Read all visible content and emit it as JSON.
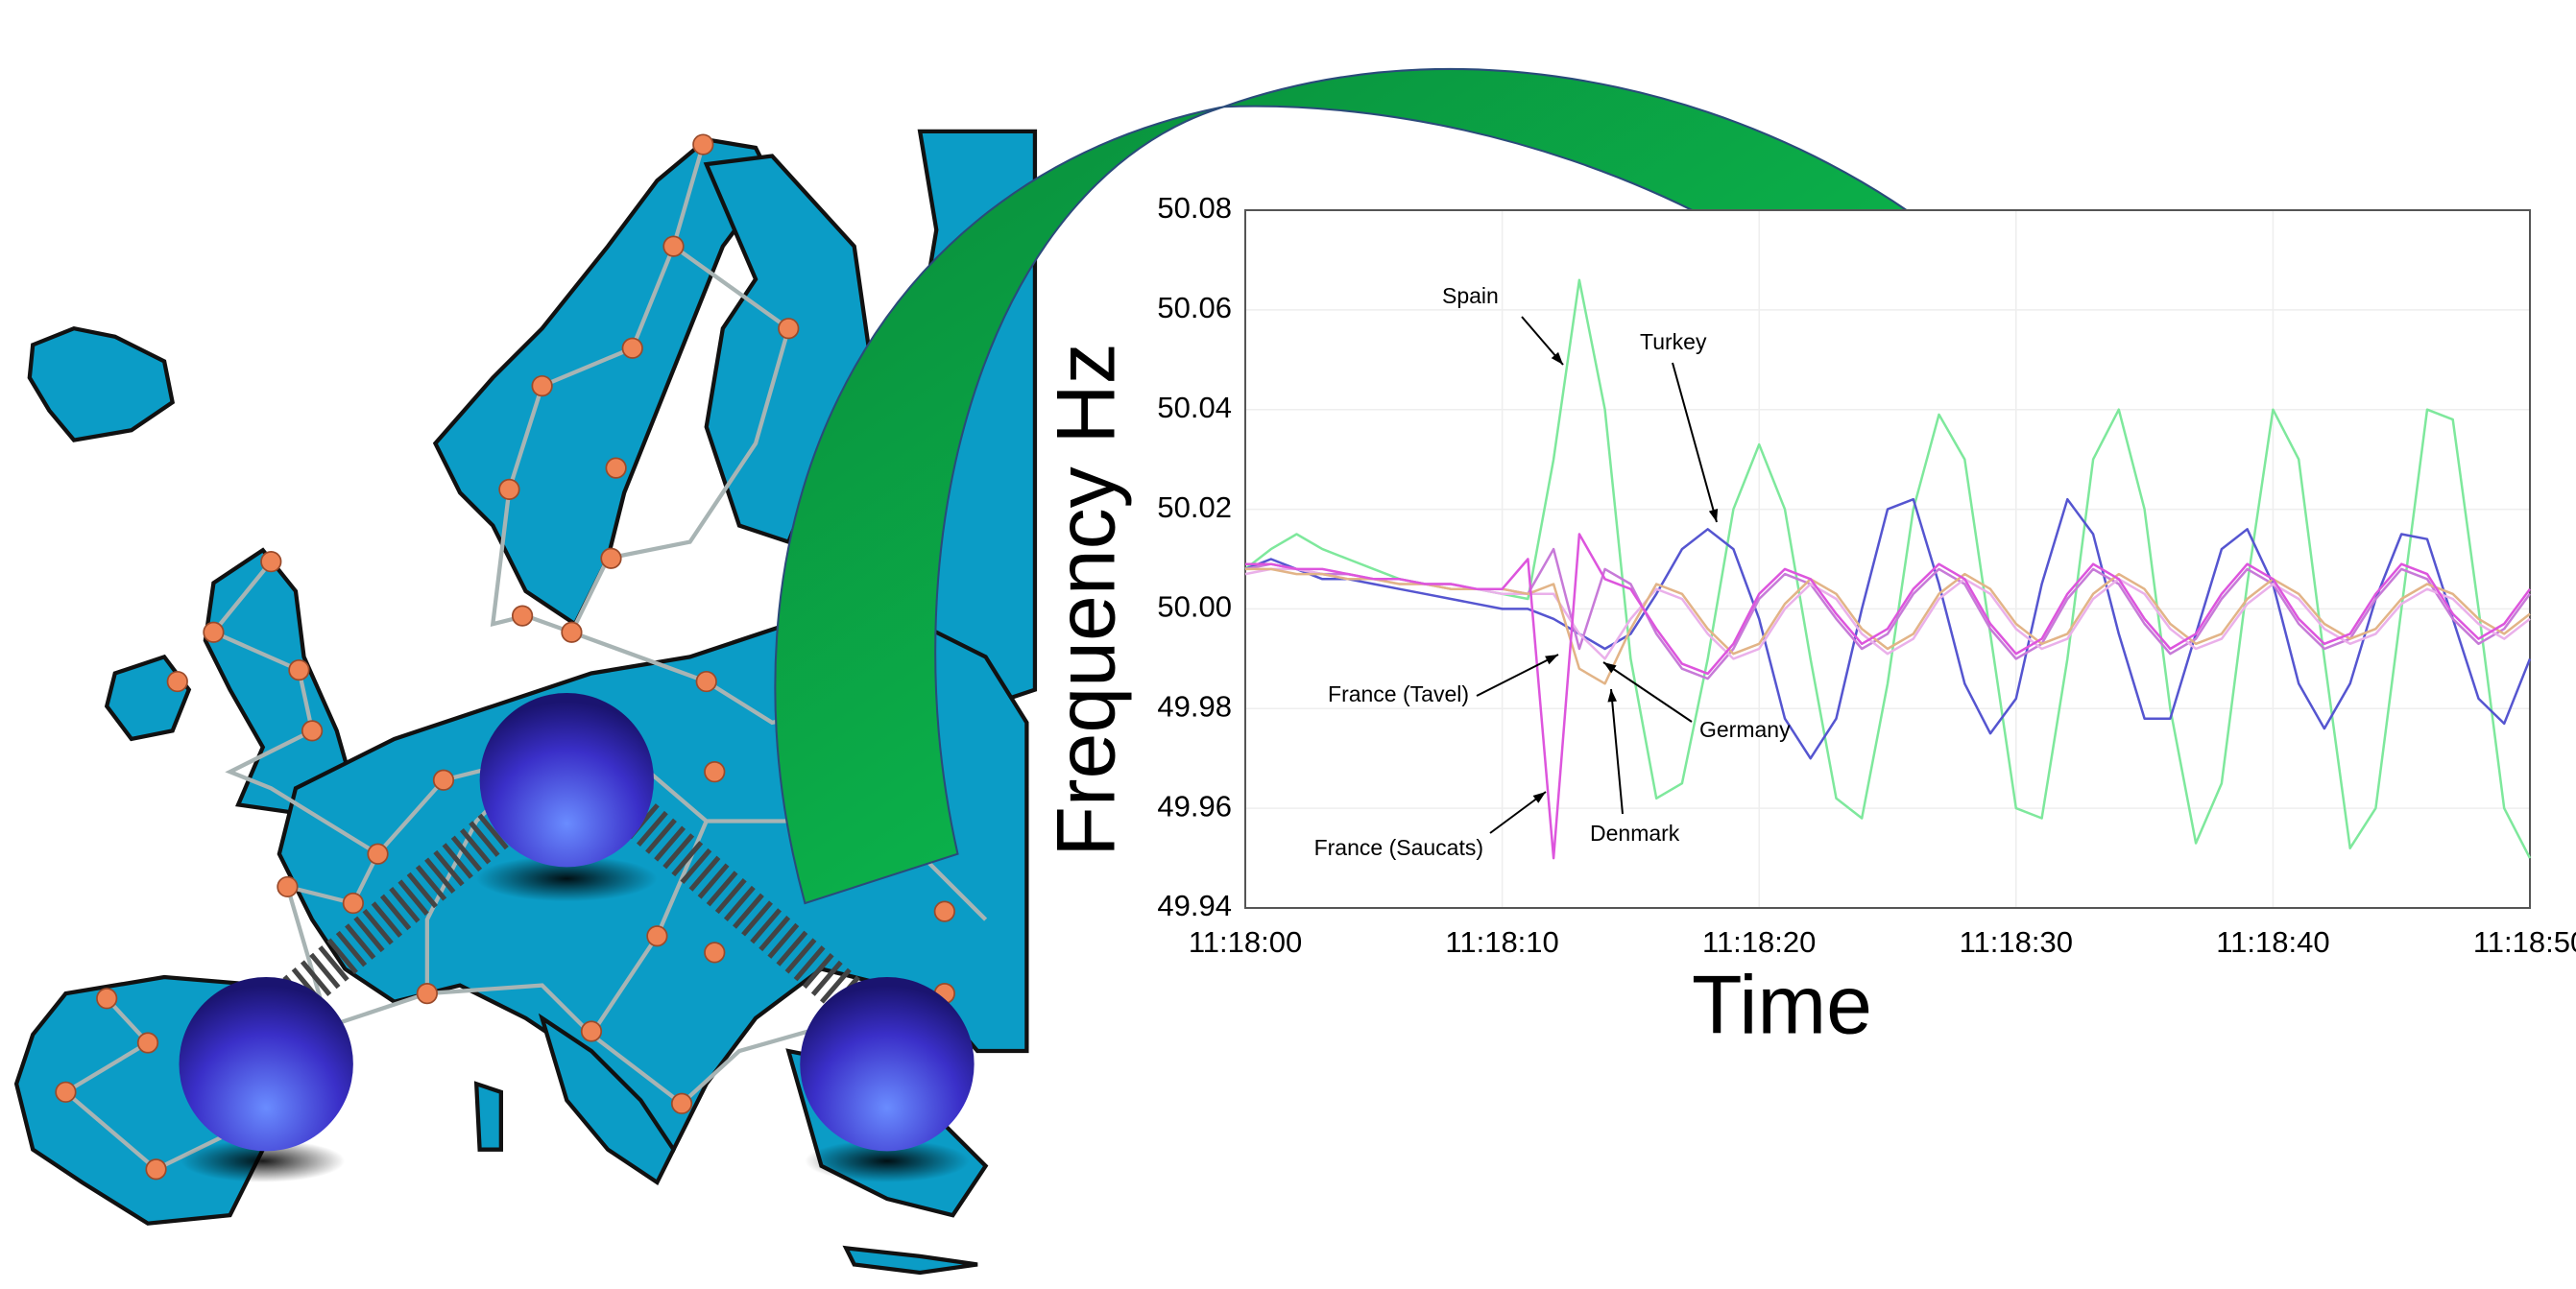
{
  "chart_data": {
    "type": "line",
    "xlabel": "Time",
    "ylabel": "Frequency Hz",
    "x": [
      0,
      1,
      2,
      3,
      4,
      5,
      6,
      7,
      8,
      9,
      10,
      11,
      12,
      13,
      14,
      15,
      16,
      17,
      18,
      19,
      20,
      21,
      22,
      23,
      24,
      25,
      26,
      27,
      28,
      29,
      30,
      31,
      32,
      33,
      34,
      35,
      36,
      37,
      38,
      39,
      40,
      41,
      42,
      43,
      44,
      45,
      46,
      47,
      48,
      49,
      50
    ],
    "xlim": [
      0,
      50
    ],
    "xticks": [
      {
        "value": 0,
        "label": "11:18:00"
      },
      {
        "value": 10,
        "label": "11:18:10"
      },
      {
        "value": 20,
        "label": "11:18:20"
      },
      {
        "value": 30,
        "label": "11:18:30"
      },
      {
        "value": 40,
        "label": "11:18:40"
      },
      {
        "value": 50,
        "label": "11:18:50"
      }
    ],
    "ylim": [
      49.94,
      50.08
    ],
    "yticks": [
      49.94,
      49.96,
      49.98,
      {
        "value": 50,
        "label": "50.00"
      },
      50.02,
      50.04,
      50.06,
      50.08
    ],
    "grid": true,
    "series": [
      {
        "name": "Spain",
        "color": "#7ee89c",
        "values": [
          50.008,
          50.012,
          50.015,
          50.012,
          50.01,
          50.008,
          50.006,
          50.005,
          50.004,
          50.004,
          50.003,
          50.002,
          50.03,
          50.066,
          50.04,
          49.99,
          49.962,
          49.965,
          49.99,
          50.02,
          50.033,
          50.02,
          49.99,
          49.962,
          49.958,
          49.985,
          50.02,
          50.039,
          50.03,
          49.995,
          49.96,
          49.958,
          49.99,
          50.03,
          50.04,
          50.02,
          49.98,
          49.953,
          49.965,
          50.005,
          50.04,
          50.03,
          49.99,
          49.952,
          49.96,
          50.0,
          50.04,
          50.038,
          50.0,
          49.96,
          49.95
        ]
      },
      {
        "name": "Turkey",
        "color": "#5555d0",
        "values": [
          50.008,
          50.01,
          50.008,
          50.006,
          50.006,
          50.005,
          50.004,
          50.003,
          50.002,
          50.001,
          50.0,
          50.0,
          49.998,
          49.995,
          49.992,
          49.995,
          50.003,
          50.012,
          50.016,
          50.012,
          49.998,
          49.978,
          49.97,
          49.978,
          50.0,
          50.02,
          50.022,
          50.005,
          49.985,
          49.975,
          49.982,
          50.005,
          50.022,
          50.015,
          49.995,
          49.978,
          49.978,
          49.995,
          50.012,
          50.016,
          50.005,
          49.985,
          49.976,
          49.985,
          50.002,
          50.015,
          50.014,
          49.998,
          49.982,
          49.977,
          49.99
        ]
      },
      {
        "name": "France (Tavel)",
        "color": "#c77ad8",
        "values": [
          50.008,
          50.009,
          50.008,
          50.007,
          50.007,
          50.006,
          50.006,
          50.005,
          50.005,
          50.004,
          50.004,
          50.003,
          50.012,
          49.992,
          50.008,
          50.005,
          49.995,
          49.988,
          49.986,
          49.992,
          50.002,
          50.007,
          50.005,
          49.998,
          49.992,
          49.995,
          50.003,
          50.008,
          50.005,
          49.996,
          49.99,
          49.993,
          50.002,
          50.008,
          50.005,
          49.997,
          49.991,
          49.994,
          50.002,
          50.008,
          50.005,
          49.997,
          49.992,
          49.994,
          50.002,
          50.008,
          50.006,
          49.998,
          49.993,
          49.996,
          50.003
        ]
      },
      {
        "name": "Germany",
        "color": "#eab0ea",
        "values": [
          50.007,
          50.008,
          50.008,
          50.007,
          50.006,
          50.006,
          50.005,
          50.005,
          50.004,
          50.004,
          50.003,
          50.003,
          50.003,
          49.995,
          49.99,
          49.998,
          50.004,
          50.002,
          49.995,
          49.99,
          49.992,
          50.0,
          50.005,
          50.002,
          49.995,
          49.991,
          49.994,
          50.002,
          50.006,
          50.003,
          49.996,
          49.992,
          49.994,
          50.002,
          50.006,
          50.003,
          49.996,
          49.992,
          49.994,
          50.001,
          50.005,
          50.002,
          49.996,
          49.993,
          49.995,
          50.001,
          50.004,
          50.002,
          49.997,
          49.994,
          49.998
        ]
      },
      {
        "name": "Denmark",
        "color": "#e2b487",
        "values": [
          50.008,
          50.008,
          50.007,
          50.007,
          50.006,
          50.006,
          50.005,
          50.005,
          50.004,
          50.004,
          50.004,
          50.003,
          50.005,
          49.988,
          49.985,
          49.996,
          50.005,
          50.003,
          49.996,
          49.991,
          49.993,
          50.001,
          50.006,
          50.003,
          49.996,
          49.992,
          49.995,
          50.003,
          50.007,
          50.004,
          49.997,
          49.993,
          49.995,
          50.003,
          50.007,
          50.004,
          49.997,
          49.993,
          49.995,
          50.002,
          50.006,
          50.003,
          49.997,
          49.994,
          49.996,
          50.002,
          50.005,
          50.003,
          49.998,
          49.995,
          49.999
        ]
      },
      {
        "name": "France (Saucats)",
        "color": "#dd55dd",
        "values": [
          50.009,
          50.009,
          50.008,
          50.008,
          50.007,
          50.006,
          50.006,
          50.005,
          50.005,
          50.004,
          50.004,
          50.01,
          49.95,
          50.015,
          50.006,
          50.004,
          49.996,
          49.989,
          49.987,
          49.993,
          50.003,
          50.008,
          50.006,
          49.999,
          49.993,
          49.996,
          50.004,
          50.009,
          50.006,
          49.997,
          49.991,
          49.994,
          50.003,
          50.009,
          50.006,
          49.998,
          49.992,
          49.995,
          50.003,
          50.009,
          50.006,
          49.998,
          49.993,
          49.995,
          50.003,
          50.009,
          50.007,
          49.999,
          49.994,
          49.997,
          50.004
        ]
      }
    ]
  }
}
